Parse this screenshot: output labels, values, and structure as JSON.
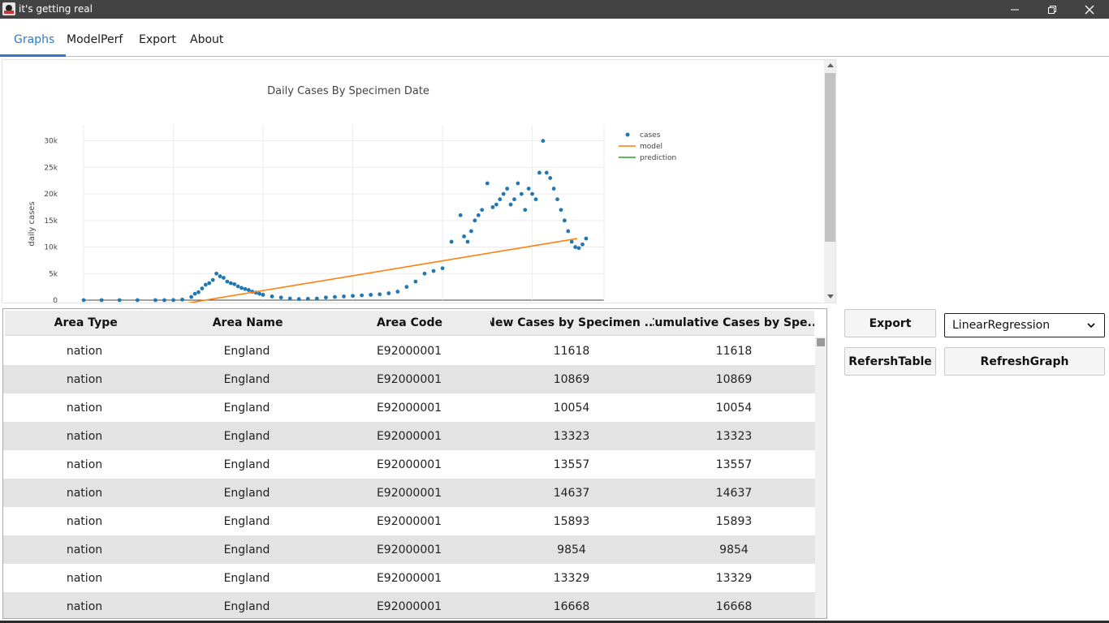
{
  "window": {
    "title": "it's getting real"
  },
  "tabs": [
    {
      "label": "Graphs"
    },
    {
      "label": "ModelPerf"
    },
    {
      "label": "Export"
    },
    {
      "label": "About"
    }
  ],
  "graph": {
    "title": "Daily Cases By Specimen Date",
    "ylabel": "daily cases",
    "legend": [
      "cases",
      "model",
      "prediction"
    ]
  },
  "chart_data": {
    "type": "scatter",
    "title": "Daily Cases By Specimen Date",
    "xlabel": "",
    "ylabel": "daily cases",
    "y_ticks": [
      "0",
      "5k",
      "10k",
      "15k",
      "20k",
      "25k",
      "30k"
    ],
    "ylim": [
      0,
      33000
    ],
    "xlim": [
      0,
      290
    ],
    "series": [
      {
        "name": "cases",
        "color": "#1f77b4",
        "mode": "markers",
        "x": [
          0,
          10,
          20,
          30,
          40,
          45,
          50,
          55,
          60,
          62,
          64,
          66,
          68,
          70,
          72,
          74,
          76,
          78,
          80,
          82,
          84,
          86,
          88,
          90,
          92,
          94,
          96,
          98,
          100,
          105,
          110,
          115,
          120,
          125,
          130,
          135,
          140,
          145,
          150,
          155,
          160,
          165,
          170,
          175,
          180,
          185,
          190,
          195,
          200,
          205,
          210,
          212,
          214,
          216,
          218,
          220,
          222,
          225,
          228,
          230,
          232,
          234,
          236,
          238,
          240,
          242,
          244,
          246,
          248,
          250,
          252,
          254,
          256,
          258,
          260,
          262,
          264,
          266,
          268,
          270,
          272,
          274,
          276,
          278,
          280
        ],
        "values": [
          0,
          0,
          0,
          0,
          0,
          0,
          10,
          100,
          600,
          1200,
          1500,
          2200,
          2900,
          3200,
          3800,
          5000,
          4500,
          4200,
          3500,
          3200,
          3000,
          2600,
          2300,
          2100,
          1900,
          1600,
          1400,
          1200,
          1000,
          700,
          500,
          300,
          200,
          250,
          300,
          500,
          600,
          700,
          800,
          900,
          1000,
          1100,
          1300,
          1600,
          2500,
          3500,
          5000,
          5500,
          6000,
          11000,
          16000,
          12000,
          11000,
          13000,
          15000,
          16000,
          17000,
          22000,
          17500,
          18000,
          19000,
          20000,
          21000,
          18000,
          19000,
          22000,
          20000,
          17000,
          21000,
          20000,
          19000,
          24000,
          30000,
          24000,
          23000,
          21000,
          19000,
          17000,
          15000,
          13000,
          11000,
          10000,
          9800,
          10500,
          11600
        ]
      },
      {
        "name": "model",
        "color": "#ff7f0e",
        "mode": "line",
        "x": [
          50,
          275
        ],
        "values": [
          -1000,
          11600
        ]
      },
      {
        "name": "prediction",
        "color": "#2ca02c",
        "mode": "line",
        "x": [],
        "values": []
      }
    ]
  },
  "table": {
    "headers": [
      "Area Type",
      "Area Name",
      "Area Code",
      "New Cases by Specimen ...",
      "Cumulative Cases by Spe..."
    ],
    "rows": [
      [
        "nation",
        "England",
        "E92000001",
        "11618",
        "11618"
      ],
      [
        "nation",
        "England",
        "E92000001",
        "10869",
        "10869"
      ],
      [
        "nation",
        "England",
        "E92000001",
        "10054",
        "10054"
      ],
      [
        "nation",
        "England",
        "E92000001",
        "13323",
        "13323"
      ],
      [
        "nation",
        "England",
        "E92000001",
        "13557",
        "13557"
      ],
      [
        "nation",
        "England",
        "E92000001",
        "14637",
        "14637"
      ],
      [
        "nation",
        "England",
        "E92000001",
        "15893",
        "15893"
      ],
      [
        "nation",
        "England",
        "E92000001",
        "9854",
        "9854"
      ],
      [
        "nation",
        "England",
        "E92000001",
        "13329",
        "13329"
      ],
      [
        "nation",
        "England",
        "E92000001",
        "16668",
        "16668"
      ]
    ]
  },
  "controls": {
    "export_label": "Export",
    "refresh_table_label": "RefershTable",
    "refresh_graph_label": "RefreshGraph",
    "model_select_value": "LinearRegression"
  }
}
